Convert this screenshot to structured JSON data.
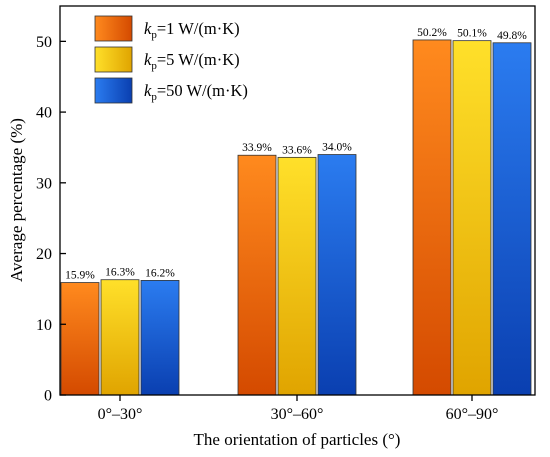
{
  "chart_data": {
    "type": "bar",
    "categories": [
      "0°–30°",
      "30°–60°",
      "60°–90°"
    ],
    "xlabel": "The orientation of particles (°)",
    "ylabel": "Average percentage (%)",
    "ylim": [
      0,
      55
    ],
    "yticks": [
      0,
      10,
      20,
      30,
      40,
      50
    ],
    "grid": false,
    "legend_position": "top-left",
    "series": [
      {
        "name": "kp=1 W/(m·K)",
        "name_parts": {
          "symbol": "k",
          "subscript": "p",
          "rest": "=1 W/(m·K)"
        },
        "values": [
          15.9,
          33.9,
          50.2
        ],
        "labels": [
          "15.9%",
          "33.9%",
          "50.2%"
        ],
        "color_top": "#ff8a1e",
        "color_bottom": "#d44a00"
      },
      {
        "name": "kp=5 W/(m·K)",
        "name_parts": {
          "symbol": "k",
          "subscript": "p",
          "rest": "=5 W/(m·K)"
        },
        "values": [
          16.3,
          33.6,
          50.1
        ],
        "labels": [
          "16.3%",
          "33.6%",
          "50.1%"
        ],
        "color_top": "#ffe02a",
        "color_bottom": "#e0a400"
      },
      {
        "name": "kp=50 W/(m·K)",
        "name_parts": {
          "symbol": "k",
          "subscript": "p",
          "rest": "=50 W/(m·K)"
        },
        "values": [
          16.2,
          34.0,
          49.8
        ],
        "labels": [
          "16.2%",
          "34.0%",
          "49.8%"
        ],
        "color_top": "#2b7cf0",
        "color_bottom": "#0a3fb0"
      }
    ]
  }
}
